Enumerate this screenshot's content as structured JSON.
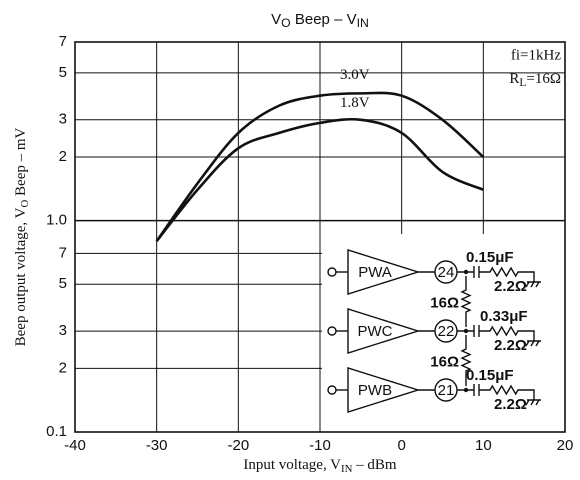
{
  "chart_data": {
    "type": "line",
    "title": [
      "V",
      "O",
      " Beep – V",
      "IN"
    ],
    "x_label": [
      "Input voltage, V",
      "IN",
      " – dBm"
    ],
    "y_label": [
      "Beep output voltage, V",
      "O",
      " Beep – mV"
    ],
    "log_y": true,
    "grid": true,
    "xlim": [
      -40,
      20
    ],
    "xticks": [
      -40,
      -30,
      -20,
      -10,
      0,
      10,
      20
    ],
    "ylim": [
      0.1,
      7
    ],
    "yticks": [
      0.1,
      {
        "value": 0.2,
        "label": "2"
      },
      {
        "value": 0.3,
        "label": "3"
      },
      {
        "value": 0.5,
        "label": "5"
      },
      {
        "value": 0.7,
        "label": "7"
      },
      {
        "value": 1,
        "label": "1.0"
      },
      2,
      3,
      5,
      7
    ],
    "x": [
      -30,
      -25,
      -20,
      -15,
      -10,
      -5,
      0,
      5,
      10
    ],
    "series": [
      {
        "name": "3.0V",
        "color": "#111111",
        "values": [
          0.8,
          1.5,
          2.6,
          3.5,
          3.9,
          4.0,
          3.9,
          3.0,
          2.0
        ]
      },
      {
        "name": "1.8V",
        "color": "#111111",
        "values": [
          0.8,
          1.4,
          2.2,
          2.6,
          2.9,
          3.0,
          2.6,
          1.7,
          1.4
        ]
      }
    ],
    "conditions": [
      "fi=1kHz",
      [
        "R",
        "L",
        "=16Ω"
      ]
    ],
    "inset": {
      "amplifiers": [
        {
          "label": "PWA",
          "pin": "24",
          "capacitor": "0.15μF",
          "resistor": "2.2Ω"
        },
        {
          "label": "PWC",
          "pin": "22",
          "capacitor": "0.33μF",
          "resistor": "2.2Ω"
        },
        {
          "label": "PWB",
          "pin": "21",
          "capacitor": "0.15μF",
          "resistor": "2.2Ω"
        }
      ],
      "links": [
        "16Ω",
        "16Ω"
      ]
    }
  }
}
